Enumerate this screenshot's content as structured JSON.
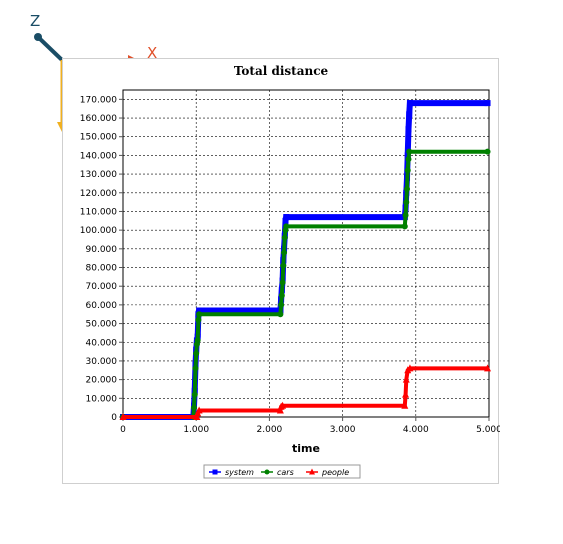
{
  "gizmo": {
    "z_label": "Z",
    "x_label": "X",
    "z_color": "#1a4d66",
    "x_color": "#e0502a",
    "y_color": "#f0b020"
  },
  "chart_data": {
    "type": "line",
    "title": "Total distance",
    "xlabel": "time",
    "ylabel": "",
    "xlim": [
      0,
      5000
    ],
    "ylim": [
      0,
      175000
    ],
    "x_ticks": [
      0,
      1000,
      2000,
      3000,
      4000,
      5000
    ],
    "x_tick_labels": [
      "0",
      "1.000",
      "2.000",
      "3.000",
      "4.000",
      "5.000"
    ],
    "y_ticks": [
      0,
      10000,
      20000,
      30000,
      40000,
      50000,
      60000,
      70000,
      80000,
      90000,
      100000,
      110000,
      120000,
      130000,
      140000,
      150000,
      160000,
      170000
    ],
    "y_tick_labels": [
      "0",
      "10.000",
      "20.000",
      "30.000",
      "40.000",
      "50.000",
      "60.000",
      "70.000",
      "80.000",
      "90.000",
      "100.000",
      "110.000",
      "120.000",
      "130.000",
      "140.000",
      "150.000",
      "160.000",
      "170.000"
    ],
    "grid": true,
    "legend_position": "bottom",
    "series": [
      {
        "name": "system",
        "color": "#0000ff",
        "marker": "square",
        "points": [
          [
            0,
            0
          ],
          [
            960,
            0
          ],
          [
            970,
            6000
          ],
          [
            980,
            14000
          ],
          [
            990,
            28000
          ],
          [
            1000,
            36000
          ],
          [
            1010,
            41000
          ],
          [
            1020,
            43000
          ],
          [
            1030,
            55000
          ],
          [
            1040,
            57000
          ],
          [
            2150,
            57000
          ],
          [
            2160,
            63000
          ],
          [
            2170,
            68000
          ],
          [
            2180,
            73000
          ],
          [
            2190,
            84000
          ],
          [
            2200,
            90000
          ],
          [
            2210,
            97000
          ],
          [
            2220,
            105000
          ],
          [
            2230,
            107000
          ],
          [
            3850,
            107000
          ],
          [
            3860,
            112000
          ],
          [
            3870,
            120000
          ],
          [
            3880,
            128000
          ],
          [
            3890,
            140000
          ],
          [
            3900,
            154000
          ],
          [
            3910,
            162000
          ],
          [
            3920,
            168000
          ],
          [
            4980,
            168000
          ]
        ]
      },
      {
        "name": "cars",
        "color": "#008000",
        "marker": "circle",
        "points": [
          [
            0,
            0
          ],
          [
            960,
            0
          ],
          [
            970,
            5000
          ],
          [
            980,
            12000
          ],
          [
            990,
            26000
          ],
          [
            1000,
            34000
          ],
          [
            1010,
            39000
          ],
          [
            1020,
            41000
          ],
          [
            1030,
            52000
          ],
          [
            1040,
            55000
          ],
          [
            2150,
            55000
          ],
          [
            2160,
            60000
          ],
          [
            2170,
            65000
          ],
          [
            2180,
            72000
          ],
          [
            2190,
            81000
          ],
          [
            2200,
            88000
          ],
          [
            2210,
            96000
          ],
          [
            2220,
            100000
          ],
          [
            2230,
            102000
          ],
          [
            3850,
            102000
          ],
          [
            3860,
            108000
          ],
          [
            3870,
            115000
          ],
          [
            3880,
            122000
          ],
          [
            3890,
            132000
          ],
          [
            3900,
            138000
          ],
          [
            3910,
            142000
          ],
          [
            4980,
            142000
          ]
        ]
      },
      {
        "name": "people",
        "color": "#ff0000",
        "marker": "triangle",
        "points": [
          [
            0,
            0
          ],
          [
            1010,
            0
          ],
          [
            1020,
            2000
          ],
          [
            1040,
            3500
          ],
          [
            2150,
            3500
          ],
          [
            2160,
            5500
          ],
          [
            2180,
            6000
          ],
          [
            3850,
            6000
          ],
          [
            3860,
            12000
          ],
          [
            3870,
            20000
          ],
          [
            3890,
            25000
          ],
          [
            3920,
            26000
          ],
          [
            4980,
            26000
          ]
        ]
      }
    ]
  }
}
